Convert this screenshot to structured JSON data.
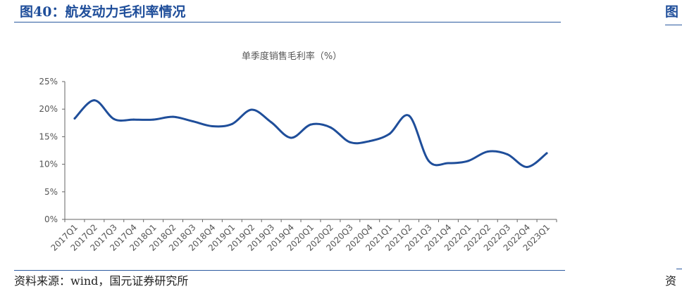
{
  "figure": {
    "title": "图40：航发动力毛利率情况",
    "right_title_fragment": "图",
    "source": "资料来源：wind，国元证券研究所",
    "right_source_fragment": "资"
  },
  "colors": {
    "line": "#1f4e9a",
    "title": "#1f4e9a",
    "rule": "#2c5aa0",
    "axis": "#666666"
  },
  "chart_data": {
    "type": "line",
    "title": "单季度销售毛利率（%）",
    "xlabel": "",
    "ylabel": "",
    "categories": [
      "2017Q1",
      "2017Q2",
      "2017Q3",
      "2017Q4",
      "2018Q1",
      "2018Q2",
      "2018Q3",
      "2018Q4",
      "2019Q1",
      "2019Q2",
      "2019Q3",
      "2019Q4",
      "2020Q1",
      "2020Q2",
      "2020Q3",
      "2020Q4",
      "2021Q1",
      "2021Q2",
      "2021Q3",
      "2021Q4",
      "2022Q1",
      "2022Q2",
      "2022Q3",
      "2022Q4",
      "2023Q1"
    ],
    "series": [
      {
        "values": [
          18.3,
          21.6,
          18.2,
          18.1,
          18.1,
          18.6,
          17.8,
          16.9,
          17.3,
          19.9,
          17.6,
          14.8,
          17.2,
          16.7,
          14.0,
          14.2,
          15.5,
          18.8,
          10.6,
          10.2,
          10.6,
          12.3,
          11.8,
          9.5,
          12.0
        ]
      }
    ],
    "ylim": [
      0,
      25
    ],
    "yticks": [
      0,
      5,
      10,
      15,
      20,
      25
    ],
    "ytick_labels": [
      "0%",
      "5%",
      "10%",
      "15%",
      "20%",
      "25%"
    ],
    "grid": false,
    "legend": "none"
  }
}
